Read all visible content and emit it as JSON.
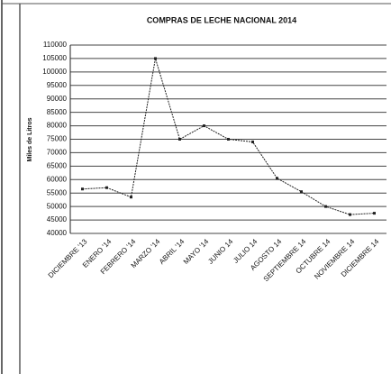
{
  "chart_data": {
    "type": "line",
    "title": "COMPRAS DE LECHE NACIONAL 2014",
    "y_label": "Miles de Litros",
    "categories": [
      "DICIEMBRE '13",
      "ENERO '14",
      "FEBRERO '14",
      "MARZO '14",
      "ABRIL '14",
      "MAYO '14",
      "JUNIO 14",
      "JULIO 14",
      "AGOSTO 14",
      "SEPTIEMBRE 14",
      "OCTUBRE 14",
      "NOVIEMBRE 14",
      "DICIEMBRE 14"
    ],
    "values": [
      56500,
      57000,
      53500,
      105000,
      75000,
      80000,
      75000,
      74000,
      60500,
      55500,
      50000,
      47000,
      47500
    ],
    "color": "#222222",
    "ylim": [
      40000,
      110000
    ],
    "yticks": [
      40000,
      45000,
      50000,
      55000,
      60000,
      65000,
      70000,
      75000,
      80000,
      85000,
      90000,
      95000,
      100000,
      105000,
      110000
    ],
    "grid": true
  }
}
